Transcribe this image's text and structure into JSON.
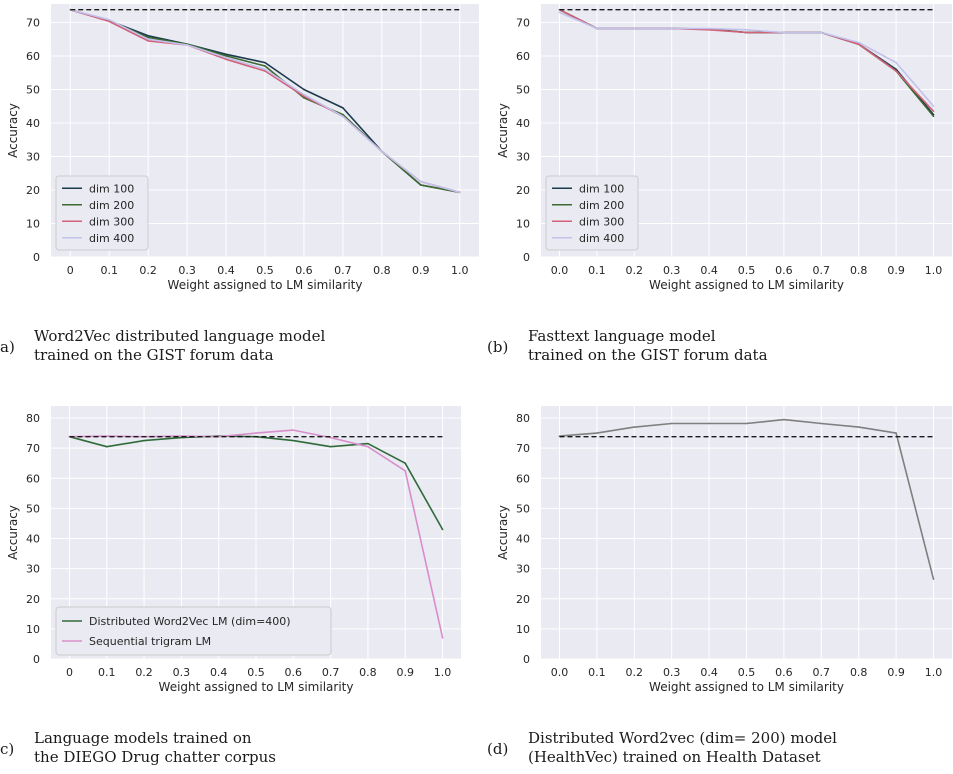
{
  "chart_data": [
    {
      "type": "line",
      "ylabel": "Accuracy",
      "xlabel": "Weight assigned to LM similarity",
      "x": [
        0,
        0.1,
        0.2,
        0.3,
        0.4,
        0.5,
        0.6,
        0.7,
        0.8,
        0.9,
        1.0
      ],
      "xtick_labels": [
        "0",
        "0.1",
        "0.2",
        "0.3",
        "0.4",
        "0.5",
        "0.6",
        "0.7",
        "0.8",
        "0.9",
        "1.0"
      ],
      "ylim": [
        0,
        75.5
      ],
      "yticks": [
        0,
        10,
        20,
        30,
        40,
        50,
        60,
        70
      ],
      "grid": true,
      "legend_position": "lower-left",
      "baseline": 73.8,
      "series": [
        {
          "name": "dim 100",
          "color": "#1b3a4b",
          "values": [
            73.8,
            70.5,
            66.0,
            63.5,
            60.5,
            58.0,
            50.0,
            44.5,
            31.5,
            21.5,
            19.3
          ]
        },
        {
          "name": "dim 200",
          "color": "#3c6a31",
          "values": [
            73.8,
            70.5,
            65.5,
            63.5,
            60.0,
            57.0,
            47.5,
            42.5,
            31.5,
            21.5,
            19.3
          ]
        },
        {
          "name": "dim 300",
          "color": "#d2617a",
          "values": [
            73.8,
            70.3,
            64.5,
            63.3,
            59.0,
            55.5,
            48.0,
            42.0,
            31.5,
            22.5,
            19.3
          ]
        },
        {
          "name": "dim 400",
          "color": "#c2c2ec",
          "values": [
            73.8,
            70.8,
            65.0,
            63.3,
            59.5,
            56.0,
            48.5,
            42.0,
            31.5,
            22.5,
            19.3
          ]
        }
      ],
      "caption_label": "a)",
      "caption_lines": [
        "Word2Vec distributed language model",
        "trained on the GIST forum data"
      ]
    },
    {
      "type": "line",
      "ylabel": "Accuracy",
      "xlabel": "Weight assigned to LM similarity",
      "x": [
        0,
        0.1,
        0.2,
        0.3,
        0.4,
        0.5,
        0.6,
        0.7,
        0.8,
        0.9,
        1.0
      ],
      "xtick_labels": [
        "0.0",
        "0.1",
        "0.2",
        "0.3",
        "0.4",
        "0.5",
        "0.6",
        "0.7",
        "0.8",
        "0.9",
        "1.0"
      ],
      "ylim": [
        0,
        75.5
      ],
      "yticks": [
        0,
        10,
        20,
        30,
        40,
        50,
        60,
        70
      ],
      "grid": true,
      "legend_position": "lower-left",
      "baseline": 73.8,
      "series": [
        {
          "name": "dim 100",
          "color": "#1b3a4b",
          "values": [
            73.8,
            68.2,
            68.2,
            68.2,
            68.0,
            67.0,
            67.0,
            67.0,
            63.5,
            56.0,
            42.5
          ]
        },
        {
          "name": "dim 200",
          "color": "#3c6a31",
          "values": [
            73.8,
            68.2,
            68.2,
            68.2,
            68.0,
            67.0,
            67.0,
            67.0,
            63.5,
            55.5,
            42.0
          ]
        },
        {
          "name": "dim 300",
          "color": "#d2617a",
          "values": [
            73.8,
            68.2,
            68.2,
            68.2,
            67.8,
            67.0,
            67.0,
            67.0,
            63.5,
            55.5,
            43.5
          ]
        },
        {
          "name": "dim 400",
          "color": "#c2c2ec",
          "values": [
            73.0,
            68.2,
            68.2,
            68.2,
            68.2,
            67.8,
            67.0,
            67.0,
            64.0,
            58.0,
            45.0
          ]
        }
      ],
      "caption_label": "(b)",
      "caption_lines": [
        "Fasttext language model",
        "trained on the GIST forum data"
      ]
    },
    {
      "type": "line",
      "ylabel": "Accuracy",
      "xlabel": "Weight assigned to LM similarity",
      "x": [
        0,
        0.1,
        0.2,
        0.3,
        0.4,
        0.5,
        0.6,
        0.7,
        0.8,
        0.9,
        1.0
      ],
      "xtick_labels": [
        "0",
        "0.1",
        "0.2",
        "0.3",
        "0.4",
        "0.5",
        "0.6",
        "0.7",
        "0.8",
        "0.9",
        "1.0"
      ],
      "ylim": [
        0,
        84
      ],
      "yticks": [
        0,
        10,
        20,
        30,
        40,
        50,
        60,
        70,
        80
      ],
      "grid": true,
      "legend_position": "lower-left",
      "baseline": 73.8,
      "series": [
        {
          "name": "Distributed Word2Vec LM (dim=400)",
          "color": "#2f6b3a",
          "values": [
            73.8,
            70.5,
            72.5,
            73.5,
            74.0,
            73.8,
            72.5,
            70.5,
            71.5,
            65.0,
            43.0
          ]
        },
        {
          "name": "Sequential trigram LM",
          "color": "#d98ecb",
          "values": [
            73.8,
            74.0,
            73.8,
            74.0,
            73.8,
            75.0,
            76.0,
            73.5,
            70.5,
            62.5,
            7.0
          ]
        }
      ],
      "caption_label": "c)",
      "caption_lines": [
        "Language models trained on",
        "the DIEGO Drug chatter corpus"
      ]
    },
    {
      "type": "line",
      "ylabel": "Accuracy",
      "xlabel": "Weight assigned to LM similarity",
      "x": [
        0,
        0.1,
        0.2,
        0.3,
        0.4,
        0.5,
        0.6,
        0.7,
        0.8,
        0.9,
        1.0
      ],
      "xtick_labels": [
        "0.0",
        "0.1",
        "0.2",
        "0.3",
        "0.4",
        "0.5",
        "0.6",
        "0.7",
        "0.8",
        "0.9",
        "1.0"
      ],
      "ylim": [
        0,
        84
      ],
      "yticks": [
        0,
        10,
        20,
        30,
        40,
        50,
        60,
        70,
        80
      ],
      "grid": true,
      "legend_position": "none",
      "baseline": 73.8,
      "series": [
        {
          "color": "#7f7f7f",
          "values": [
            74.0,
            75.0,
            77.0,
            78.2,
            78.2,
            78.2,
            79.5,
            78.2,
            77.0,
            75.0,
            26.5
          ]
        }
      ],
      "caption_label": "(d)",
      "caption_lines": [
        "Distributed Word2vec (dim= 200) model",
        "(HealthVec) trained on Health Dataset"
      ]
    }
  ]
}
